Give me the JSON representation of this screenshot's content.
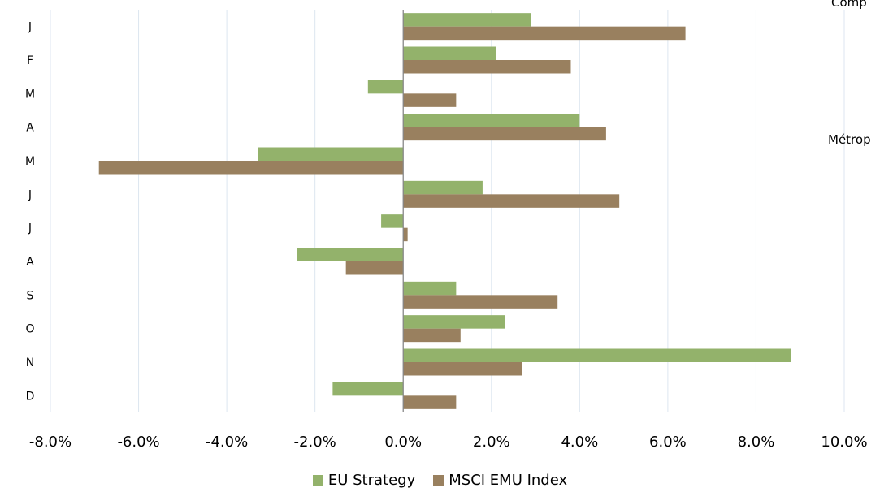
{
  "side_texts": [
    "Comp",
    "Métrop"
  ],
  "colors": {
    "grid": "#dce6f0",
    "axis": "#888888"
  },
  "chart_data": {
    "type": "bar",
    "orientation": "horizontal",
    "categories": [
      "J",
      "F",
      "M",
      "A",
      "M",
      "J",
      "J",
      "A",
      "S",
      "O",
      "N",
      "D"
    ],
    "series": [
      {
        "name": "EU Strategy",
        "color": "#93b26b",
        "values": [
          2.9,
          2.1,
          -0.8,
          4.0,
          -3.3,
          1.8,
          -0.5,
          -2.4,
          1.2,
          2.3,
          8.8,
          -1.6
        ]
      },
      {
        "name": "MSCI EMU Index",
        "color": "#99805f",
        "values": [
          6.4,
          3.8,
          1.2,
          4.6,
          -6.9,
          4.9,
          0.1,
          -1.3,
          3.5,
          1.3,
          2.7,
          1.2
        ]
      }
    ],
    "xlim": [
      -8,
      10
    ],
    "xticks": [
      -8,
      -6,
      -4,
      -2,
      0,
      2,
      4,
      6,
      8,
      10
    ],
    "xtick_labels": [
      "-8.0%",
      "-6.0%",
      "-4.0%",
      "-2.0%",
      "0.0%",
      "2.0%",
      "4.0%",
      "6.0%",
      "8.0%",
      "10.0%"
    ],
    "grid": true,
    "legend_position": "bottom"
  }
}
